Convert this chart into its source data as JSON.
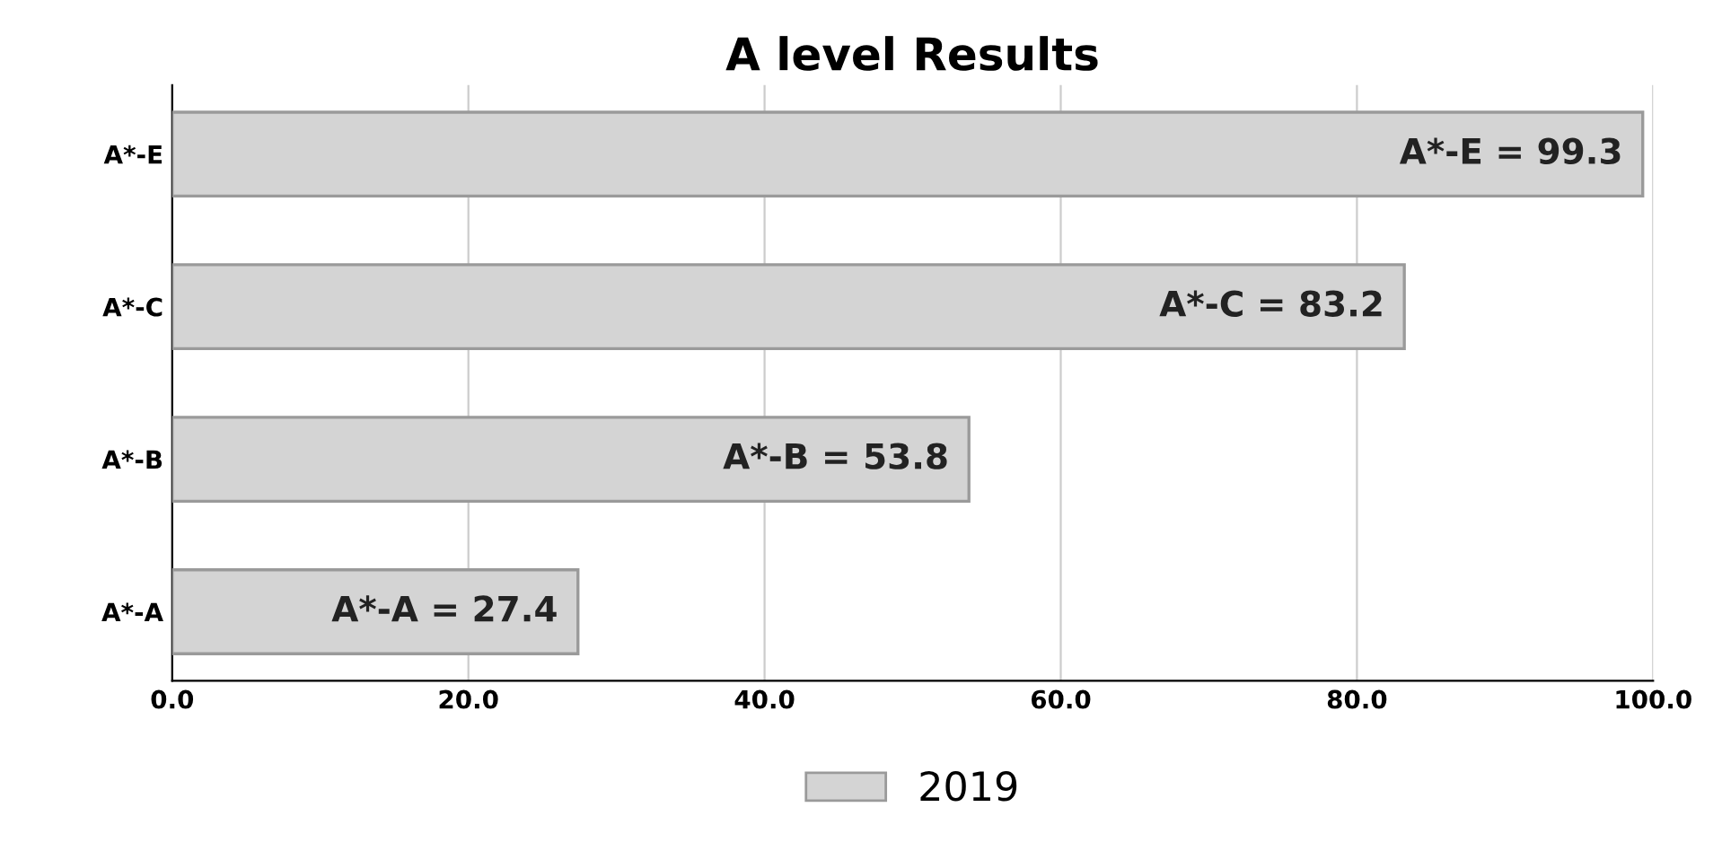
{
  "chart_data": {
    "type": "bar",
    "orientation": "horizontal",
    "title": "A level Results",
    "categories": [
      "A*-E",
      "A*-C",
      "A*-B",
      "A*-A"
    ],
    "series": [
      {
        "name": "2019",
        "color": "#d4d4d4",
        "values": [
          99.3,
          83.2,
          53.8,
          27.4
        ],
        "value_labels": [
          "A*-E = 99.3",
          "A*-C = 83.2",
          "A*-B = 53.8",
          "A*-A = 27.4"
        ]
      }
    ],
    "xlim": [
      0,
      100
    ],
    "xticks": [
      {
        "value": 0,
        "label": "0.0"
      },
      {
        "value": 20,
        "label": "20.0"
      },
      {
        "value": 40,
        "label": "40.0"
      },
      {
        "value": 60,
        "label": "60.0"
      },
      {
        "value": 80,
        "label": "80.0"
      },
      {
        "value": 100,
        "label": "100.0"
      }
    ],
    "grid": "x",
    "legend": "bottom"
  }
}
